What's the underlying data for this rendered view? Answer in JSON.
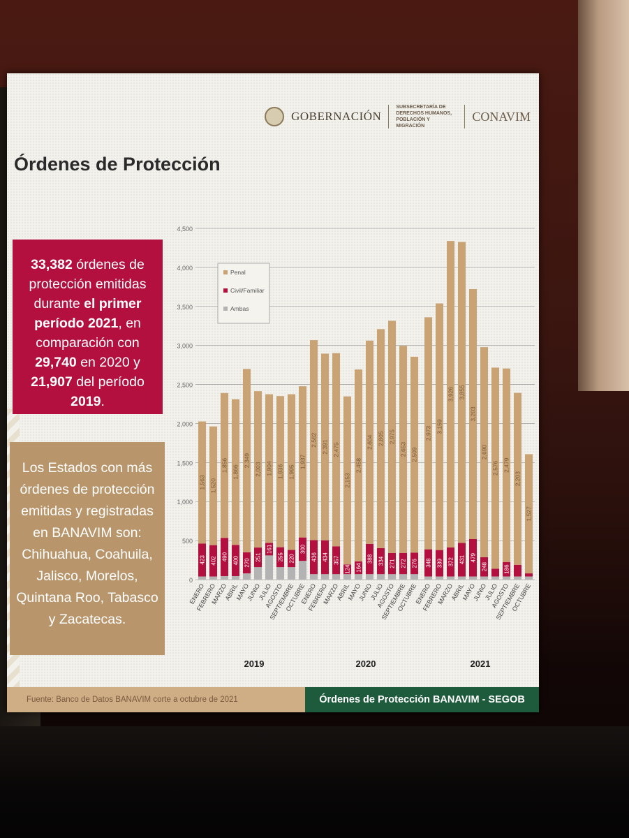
{
  "header": {
    "gob_label": "GOBERNACIÓN",
    "sub_label": "SUBSECRETARÍA DE DERECHOS HUMANOS, POBLACIÓN Y MIGRACIÓN",
    "conavim_label": "CONAVIM"
  },
  "slide_title": "Órdenes de Protección",
  "stat_box": {
    "n1": "33,382",
    "t1": " órdenes de protección emitidas durante ",
    "b1": "el primer período 2021",
    "t2": ", en comparación con ",
    "n2": "29,740",
    "t3": " en 2020 y ",
    "n3": "21,907",
    "t4": " del período ",
    "n4": "2019",
    "t5": "."
  },
  "states_box": {
    "text": "Los Estados con más órdenes de protección emitidas y registradas en BANAVIM son: Chihuahua, Coahuila, Jalisco, Morelos, Quintana Roo, Tabasco y Zacatecas."
  },
  "footer": {
    "source": "Fuente: Banco de Datos BANAVIM corte a octubre de 2021",
    "brand": "Órdenes de Protección BANAVIM - SEGOB"
  },
  "colors": {
    "penal": "#c9a373",
    "civil": "#b3103f",
    "ambas": "#b3b3b3",
    "stat_box": "#b3103f",
    "states_box": "#b8956a",
    "footer_green": "#1e5a3c"
  },
  "chart_data": {
    "type": "bar",
    "stacked": true,
    "ylim": [
      0,
      4500
    ],
    "yticks": [
      "0",
      "500",
      "1,000",
      "1,500",
      "2,000",
      "2,500",
      "3,000",
      "3,500",
      "4,000",
      "4,500"
    ],
    "legend_position": "top-left",
    "grid": true,
    "groups": [
      {
        "year": "2019",
        "months": [
          "ENERO",
          "FEBRERO",
          "MARZO",
          "ABRIL",
          "MAYO",
          "JUNIO",
          "JULIO",
          "AGOSTO",
          "SEPTIEMBRE",
          "OCTUBRE"
        ],
        "penal": [
          1563,
          1520,
          1856,
          1866,
          2349,
          2003,
          1904,
          1936,
          1995,
          1937
        ],
        "penal_labels": [
          "1,563",
          "1,520",
          "1,856",
          "1,866",
          "2,349",
          "2,003",
          "1,904",
          "1,936",
          "1,995",
          "1,937"
        ],
        "civil": [
          423,
          402,
          490,
          400,
          270,
          251,
          161,
          255,
          220,
          300
        ],
        "civil_labels": [
          "423",
          "402",
          "490",
          "400",
          "270",
          "251",
          "161",
          "255",
          "220",
          "300"
        ],
        "ambas": [
          40,
          40,
          45,
          45,
          80,
          160,
          310,
          160,
          160,
          240
        ]
      },
      {
        "year": "2020",
        "months": [
          "ENERO",
          "FEBRERO",
          "MARZO",
          "ABRIL",
          "MAYO",
          "JUNIO",
          "JULIO",
          "AGOSTO",
          "SEPTIEMBRE",
          "OCTUBRE"
        ],
        "penal": [
          2562,
          2391,
          2475,
          2153,
          2458,
          2604,
          2805,
          2975,
          2653,
          2509
        ],
        "penal_labels": [
          "2,562",
          "2,391",
          "2,475",
          "2,153",
          "2,458",
          "2,604",
          "2,805",
          "2,975",
          "2,653",
          "2,509"
        ],
        "civil": [
          436,
          434,
          357,
          124,
          164,
          388,
          334,
          271,
          272,
          276
        ],
        "civil_labels": [
          "436",
          "434",
          "357",
          "124",
          "164",
          "388",
          "334",
          "271",
          "272",
          "276"
        ],
        "ambas": [
          70,
          70,
          70,
          70,
          70,
          70,
          70,
          70,
          70,
          70
        ]
      },
      {
        "year": "2021",
        "months": [
          "ENERO",
          "FEBRERO",
          "MARZO",
          "ABRIL",
          "MAYO",
          "JUNIO",
          "JULIO",
          "AGOSTO",
          "SEPTIEMBRE",
          "OCTUBRE"
        ],
        "penal": [
          2973,
          3159,
          3926,
          3855,
          3203,
          2690,
          2576,
          2479,
          2203,
          1527
        ],
        "penal_labels": [
          "2,973",
          "3,159",
          "3,926",
          "3,855",
          "3,203",
          "2,690",
          "2,576",
          "2,479",
          "2,203",
          "1,527"
        ],
        "civil": [
          348,
          339,
          372,
          431,
          479,
          248,
          100,
          186,
          150,
          40
        ],
        "civil_labels": [
          "348",
          "339",
          "372",
          "431",
          "479",
          "248",
          "",
          "186",
          "",
          ""
        ],
        "ambas": [
          40,
          40,
          40,
          40,
          40,
          40,
          40,
          40,
          40,
          40
        ]
      }
    ],
    "series": [
      {
        "name": "Penal"
      },
      {
        "name": "Civil/Familiar"
      },
      {
        "name": "Ambas"
      }
    ]
  }
}
